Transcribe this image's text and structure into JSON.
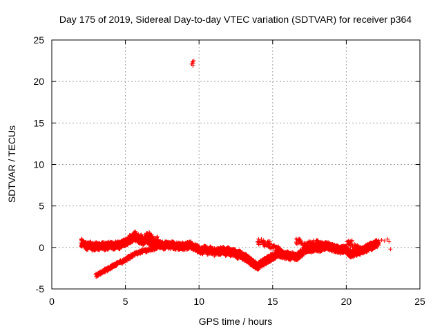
{
  "chart_data": {
    "type": "scatter",
    "title": "Day 175 of 2019, Sidereal Day-to-day VTEC variation (SDTVAR) for receiver p364",
    "xlabel": "GPS time / hours",
    "ylabel": "SDTVAR / TECUs",
    "xlim": [
      0,
      25
    ],
    "ylim": [
      -5,
      25
    ],
    "xticks": [
      "0",
      "5",
      "10",
      "15",
      "20",
      "25"
    ],
    "yticks": [
      "-5",
      "0",
      "5",
      "10",
      "15",
      "20",
      "25"
    ],
    "grid": true,
    "marker": "+",
    "series": [
      {
        "name": "SDTVAR",
        "color": "#ff0000",
        "description_points": {
          "main_band": [
            [
              2.0,
              0.6
            ],
            [
              2.2,
              0.3
            ],
            [
              2.4,
              0.1
            ],
            [
              2.6,
              0.4
            ],
            [
              2.8,
              0.0
            ],
            [
              3.0,
              0.2
            ],
            [
              3.2,
              0.1
            ],
            [
              3.4,
              0.3
            ],
            [
              3.6,
              0.1
            ],
            [
              3.8,
              0.2
            ],
            [
              4.0,
              0.3
            ],
            [
              4.2,
              0.1
            ],
            [
              4.4,
              0.4
            ],
            [
              4.6,
              0.2
            ],
            [
              4.8,
              0.5
            ],
            [
              5.0,
              0.6
            ],
            [
              5.2,
              0.8
            ],
            [
              5.4,
              1.0
            ],
            [
              5.6,
              1.3
            ],
            [
              5.8,
              1.1
            ],
            [
              6.0,
              0.9
            ],
            [
              6.2,
              0.7
            ],
            [
              6.4,
              1.0
            ],
            [
              6.6,
              0.8
            ],
            [
              6.8,
              0.6
            ],
            [
              7.0,
              0.4
            ],
            [
              7.2,
              0.5
            ],
            [
              7.4,
              0.3
            ],
            [
              7.6,
              0.2
            ],
            [
              7.8,
              0.3
            ],
            [
              8.0,
              0.2
            ],
            [
              8.2,
              0.3
            ],
            [
              8.4,
              0.2
            ],
            [
              8.6,
              0.1
            ],
            [
              8.8,
              0.2
            ],
            [
              9.0,
              0.1
            ],
            [
              9.2,
              0.2
            ],
            [
              9.4,
              0.3
            ],
            [
              9.6,
              0.1
            ],
            [
              9.8,
              0.0
            ],
            [
              10.0,
              -0.3
            ],
            [
              10.2,
              -0.4
            ],
            [
              10.4,
              -0.2
            ],
            [
              10.6,
              -0.5
            ],
            [
              10.8,
              -0.3
            ],
            [
              11.0,
              -0.6
            ],
            [
              11.2,
              -0.4
            ],
            [
              11.4,
              -0.5
            ],
            [
              11.6,
              -0.3
            ],
            [
              11.8,
              -0.6
            ],
            [
              12.0,
              -0.4
            ],
            [
              12.2,
              -0.7
            ],
            [
              12.4,
              -0.6
            ],
            [
              12.6,
              -0.9
            ],
            [
              12.8,
              -0.8
            ],
            [
              13.0,
              -1.1
            ],
            [
              13.2,
              -1.3
            ],
            [
              13.4,
              -1.5
            ],
            [
              13.6,
              -1.8
            ],
            [
              13.8,
              -2.1
            ],
            [
              14.0,
              -2.3
            ],
            [
              14.2,
              -2.0
            ],
            [
              14.4,
              -1.8
            ],
            [
              14.6,
              -1.5
            ],
            [
              14.8,
              -1.3
            ],
            [
              15.0,
              -1.1
            ],
            [
              15.2,
              -0.9
            ],
            [
              15.4,
              -0.7
            ],
            [
              15.6,
              -0.8
            ],
            [
              15.8,
              -1.0
            ],
            [
              16.0,
              -0.9
            ],
            [
              16.2,
              -1.1
            ],
            [
              16.4,
              -1.0
            ],
            [
              16.6,
              -1.2
            ],
            [
              16.8,
              -0.9
            ],
            [
              17.0,
              -0.6
            ],
            [
              17.2,
              -0.3
            ],
            [
              17.4,
              -0.1
            ],
            [
              17.6,
              -0.2
            ],
            [
              17.8,
              -0.1
            ],
            [
              18.0,
              0.0
            ],
            [
              18.2,
              -0.1
            ],
            [
              18.4,
              0.1
            ],
            [
              18.6,
              0.2
            ],
            [
              18.8,
              0.1
            ],
            [
              19.0,
              0.0
            ],
            [
              19.2,
              -0.1
            ],
            [
              19.4,
              -0.2
            ],
            [
              19.6,
              -0.3
            ],
            [
              19.8,
              -0.2
            ],
            [
              20.0,
              -0.3
            ],
            [
              20.2,
              -0.7
            ],
            [
              20.4,
              -0.8
            ],
            [
              20.6,
              -0.6
            ],
            [
              20.8,
              -0.5
            ],
            [
              21.0,
              -0.4
            ],
            [
              21.2,
              -0.3
            ],
            [
              21.4,
              -0.1
            ],
            [
              21.6,
              0.1
            ],
            [
              21.8,
              0.2
            ],
            [
              22.0,
              0.4
            ],
            [
              22.2,
              0.5
            ]
          ],
          "secondary_band": [
            [
              3.0,
              -3.4
            ],
            [
              3.3,
              -3.1
            ],
            [
              3.6,
              -2.8
            ],
            [
              3.9,
              -2.5
            ],
            [
              4.2,
              -2.2
            ],
            [
              4.5,
              -1.9
            ],
            [
              4.8,
              -1.7
            ],
            [
              5.1,
              -1.4
            ],
            [
              5.4,
              -1.0
            ],
            [
              5.7,
              -0.8
            ],
            [
              6.0,
              -0.6
            ],
            [
              6.3,
              -0.4
            ],
            [
              6.6,
              -0.3
            ],
            [
              6.9,
              -0.1
            ],
            [
              7.2,
              0.0
            ]
          ],
          "upper_band_segments": [
            [
              5.5,
              1.6
            ],
            [
              5.8,
              1.4
            ],
            [
              6.2,
              1.2
            ],
            [
              6.6,
              1.5
            ],
            [
              7.0,
              1.1
            ],
            [
              14.2,
              0.7
            ],
            [
              14.6,
              0.4
            ],
            [
              15.0,
              0.2
            ],
            [
              15.4,
              -0.2
            ],
            [
              16.8,
              0.7
            ],
            [
              17.2,
              0.3
            ],
            [
              17.6,
              0.5
            ],
            [
              18.2,
              0.6
            ],
            [
              18.8,
              0.3
            ],
            [
              20.2,
              0.5
            ],
            [
              20.6,
              0.1
            ]
          ],
          "outliers": [
            [
              9.5,
              22.1
            ],
            [
              9.55,
              22.4
            ],
            [
              9.6,
              22.2
            ],
            [
              9.65,
              22.5
            ],
            [
              9.58,
              21.9
            ],
            [
              22.4,
              0.9
            ],
            [
              22.6,
              0.8
            ],
            [
              22.8,
              1.0
            ],
            [
              22.9,
              0.7
            ],
            [
              23.0,
              -0.2
            ]
          ]
        }
      }
    ]
  }
}
